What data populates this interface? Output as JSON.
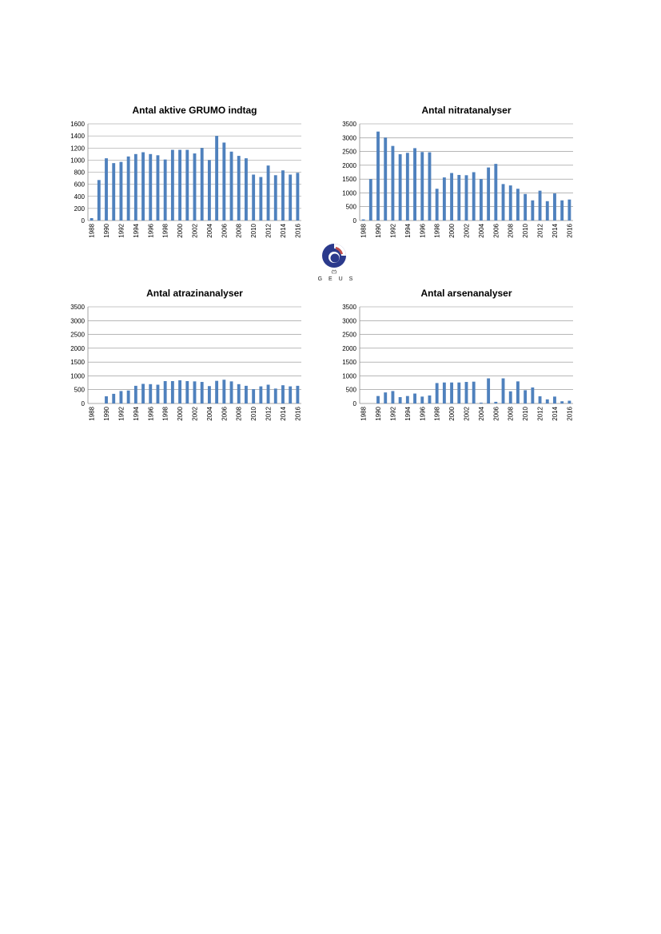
{
  "colors": {
    "bar": "#4f81bd",
    "grid": "#8c8c8c"
  },
  "logo": {
    "text": "G E U S",
    "icon": "geus-logo-icon"
  },
  "chart_data": [
    {
      "type": "bar",
      "title": "Antal aktive GRUMO indtag",
      "ylim": [
        0,
        1600
      ],
      "yticks": [
        0,
        200,
        400,
        600,
        800,
        1000,
        1200,
        1400,
        1600
      ],
      "categories": [
        1988,
        1989,
        1990,
        1991,
        1992,
        1993,
        1994,
        1995,
        1996,
        1997,
        1998,
        1999,
        2000,
        2001,
        2002,
        2003,
        2004,
        2005,
        2006,
        2007,
        2008,
        2009,
        2010,
        2011,
        2012,
        2013,
        2014,
        2015,
        2016
      ],
      "xtick_labels": [
        "1988",
        "1990",
        "1992",
        "1994",
        "1996",
        "1998",
        "2000",
        "2002",
        "2004",
        "2006",
        "2008",
        "2010",
        "2012",
        "2014",
        "2016"
      ],
      "values": [
        40,
        670,
        1030,
        950,
        970,
        1060,
        1100,
        1130,
        1100,
        1080,
        1010,
        1170,
        1170,
        1170,
        1110,
        1200,
        1000,
        1400,
        1290,
        1140,
        1070,
        1030,
        760,
        720,
        910,
        750,
        830,
        760,
        790
      ],
      "grid": true
    },
    {
      "type": "bar",
      "title": "Antal nitratanalyser",
      "ylim": [
        0,
        3500
      ],
      "yticks": [
        0,
        500,
        1000,
        1500,
        2000,
        2500,
        3000,
        3500
      ],
      "categories": [
        1988,
        1989,
        1990,
        1991,
        1992,
        1993,
        1994,
        1995,
        1996,
        1997,
        1998,
        1999,
        2000,
        2001,
        2002,
        2003,
        2004,
        2005,
        2006,
        2007,
        2008,
        2009,
        2010,
        2011,
        2012,
        2013,
        2014,
        2015,
        2016
      ],
      "xtick_labels": [
        "1988",
        "1990",
        "1992",
        "1994",
        "1996",
        "1998",
        "2000",
        "2002",
        "2004",
        "2006",
        "2008",
        "2010",
        "2012",
        "2014",
        "2016"
      ],
      "values": [
        40,
        1500,
        3220,
        3000,
        2700,
        2400,
        2450,
        2620,
        2480,
        2470,
        1150,
        1560,
        1720,
        1650,
        1640,
        1750,
        1500,
        1920,
        2050,
        1320,
        1270,
        1150,
        960,
        730,
        1080,
        700,
        980,
        730,
        760
      ],
      "grid": true
    },
    {
      "type": "bar",
      "title": "Antal atrazinanalyser",
      "ylim": [
        0,
        3500
      ],
      "yticks": [
        0,
        500,
        1000,
        1500,
        2000,
        2500,
        3000,
        3500
      ],
      "categories": [
        1988,
        1989,
        1990,
        1991,
        1992,
        1993,
        1994,
        1995,
        1996,
        1997,
        1998,
        1999,
        2000,
        2001,
        2002,
        2003,
        2004,
        2005,
        2006,
        2007,
        2008,
        2009,
        2010,
        2011,
        2012,
        2013,
        2014,
        2015,
        2016
      ],
      "xtick_labels": [
        "1988",
        "1990",
        "1992",
        "1994",
        "1996",
        "1998",
        "2000",
        "2002",
        "2004",
        "2006",
        "2008",
        "2010",
        "2012",
        "2014",
        "2016"
      ],
      "values": [
        0,
        0,
        260,
        350,
        450,
        470,
        640,
        710,
        700,
        680,
        810,
        810,
        840,
        810,
        800,
        780,
        630,
        820,
        860,
        800,
        700,
        640,
        520,
        620,
        680,
        540,
        660,
        620,
        640
      ],
      "grid": true
    },
    {
      "type": "bar",
      "title": "Antal arsenanalyser",
      "ylim": [
        0,
        3500
      ],
      "yticks": [
        0,
        500,
        1000,
        1500,
        2000,
        2500,
        3000,
        3500
      ],
      "categories": [
        1988,
        1989,
        1990,
        1991,
        1992,
        1993,
        1994,
        1995,
        1996,
        1997,
        1998,
        1999,
        2000,
        2001,
        2002,
        2003,
        2004,
        2005,
        2006,
        2007,
        2008,
        2009,
        2010,
        2011,
        2012,
        2013,
        2014,
        2015,
        2016
      ],
      "xtick_labels": [
        "1988",
        "1990",
        "1992",
        "1994",
        "1996",
        "1998",
        "2000",
        "2002",
        "2004",
        "2006",
        "2008",
        "2010",
        "2012",
        "2014",
        "2016"
      ],
      "values": [
        0,
        0,
        270,
        400,
        450,
        230,
        270,
        360,
        250,
        290,
        740,
        760,
        760,
        760,
        780,
        790,
        30,
        910,
        60,
        910,
        440,
        800,
        480,
        580,
        260,
        150,
        250,
        80,
        100
      ],
      "grid": true
    }
  ]
}
